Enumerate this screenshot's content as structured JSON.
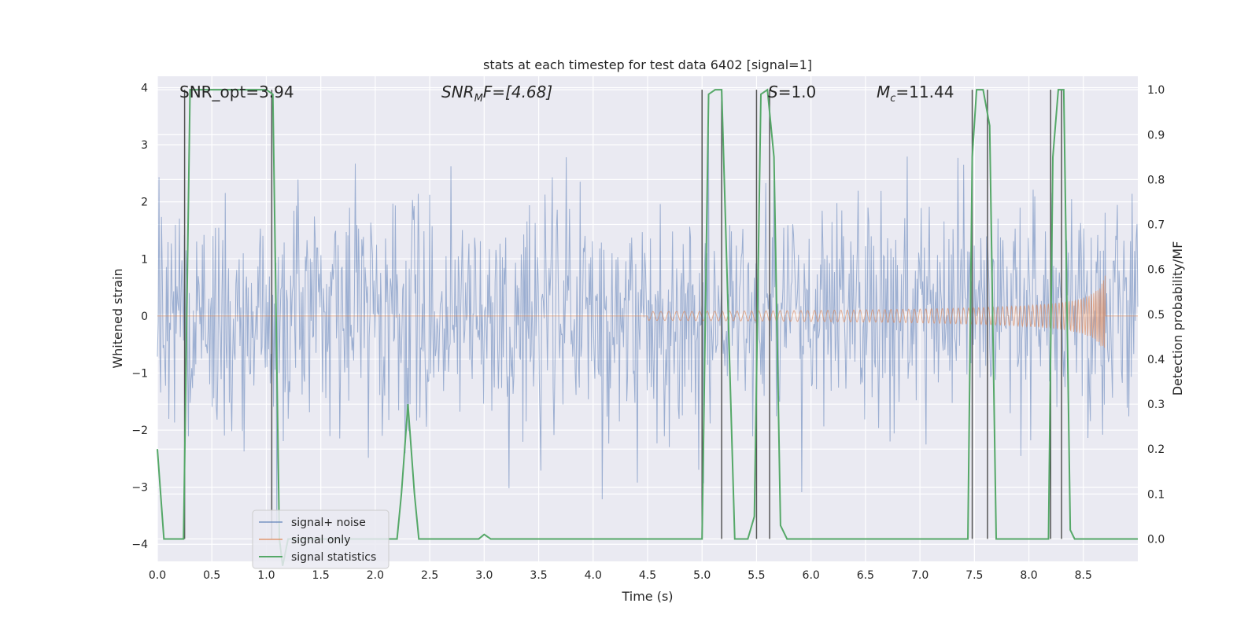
{
  "chart_data": {
    "type": "line",
    "title": "stats at each timestep for test data 6402 [signal=1]",
    "xlabel": "Time (s)",
    "ylabel": "Whitened strain",
    "y2label": "Detection probability/MF",
    "xlim": [
      0.0,
      9.0
    ],
    "ylim": [
      -4.3,
      4.2
    ],
    "y2lim": [
      -0.05,
      1.03
    ],
    "xticks": [
      "0.0",
      "0.5",
      "1.0",
      "1.5",
      "2.0",
      "2.5",
      "3.0",
      "3.5",
      "4.0",
      "4.5",
      "5.0",
      "5.5",
      "6.0",
      "6.5",
      "7.0",
      "7.5",
      "8.0",
      "8.5"
    ],
    "yticks": [
      "4",
      "3",
      "2",
      "1",
      "0",
      "−1",
      "−2",
      "−3",
      "−4"
    ],
    "y2ticks": [
      "1.0",
      "0.9",
      "0.8",
      "0.7",
      "0.6",
      "0.5",
      "0.4",
      "0.3",
      "0.2",
      "0.1",
      "0.0"
    ],
    "annotations": {
      "snr_opt": "SNR_opt=3.94",
      "snr_mf_prefix": "SNR",
      "snr_mf_sub": "M",
      "snr_mf_suffix": "F=[4.68]",
      "s_label": "S",
      "s_value": "=1.0",
      "mc_label": "M",
      "mc_sub": "c",
      "mc_value": "=11.44"
    },
    "legend": {
      "position": "lower-left",
      "entries": [
        "signal+ noise",
        "signal only",
        "signal statistics"
      ]
    },
    "colors": {
      "noise": "#4c72b0",
      "signal": "#dd8452",
      "stats": "#55a868",
      "vlines": "#555555",
      "background": "#eaeaf2"
    },
    "series": [
      {
        "name": "signal statistics",
        "axis": "right",
        "x": [
          0.0,
          0.06,
          0.12,
          0.18,
          0.24,
          0.3,
          0.36,
          0.5,
          0.8,
          1.0,
          1.06,
          1.12,
          1.15,
          1.2,
          2.2,
          2.24,
          2.3,
          2.36,
          2.4,
          2.5,
          2.95,
          3.0,
          3.06,
          3.1,
          4.0,
          4.7,
          5.0,
          5.06,
          5.12,
          5.18,
          5.24,
          5.3,
          5.36,
          5.42,
          5.48,
          5.54,
          5.6,
          5.66,
          5.72,
          5.78,
          5.84,
          6.0,
          7.0,
          7.44,
          7.48,
          7.52,
          7.58,
          7.64,
          7.7,
          8.18,
          8.22,
          8.27,
          8.32,
          8.38,
          8.42,
          9.0
        ],
        "y": [
          0.2,
          0.0,
          0.0,
          0.0,
          0.0,
          1.0,
          1.0,
          1.0,
          1.0,
          1.0,
          0.99,
          0.0,
          -0.06,
          0.0,
          0.0,
          0.1,
          0.3,
          0.1,
          0.0,
          0.0,
          0.0,
          0.01,
          0.0,
          0.0,
          0.0,
          0.0,
          0.0,
          0.99,
          1.0,
          1.0,
          0.5,
          0.0,
          0.0,
          0.0,
          0.05,
          0.99,
          1.0,
          0.85,
          0.03,
          0.0,
          0.0,
          0.0,
          0.0,
          0.0,
          0.85,
          1.0,
          1.0,
          0.92,
          0.0,
          0.0,
          0.85,
          1.0,
          1.0,
          0.02,
          0.0,
          0.0
        ]
      },
      {
        "name": "signal only",
        "axis": "left",
        "chirp": {
          "start": 4.5,
          "merger": 8.7,
          "peak_amplitude": 0.72
        }
      },
      {
        "name": "signal+ noise",
        "axis": "left",
        "samples": 1200,
        "noise_sigma": 1.0,
        "seed": 6402
      }
    ],
    "vlines": [
      0.25,
      1.05,
      5.0,
      5.18,
      5.5,
      5.62,
      7.48,
      7.62,
      8.2,
      8.3
    ]
  }
}
